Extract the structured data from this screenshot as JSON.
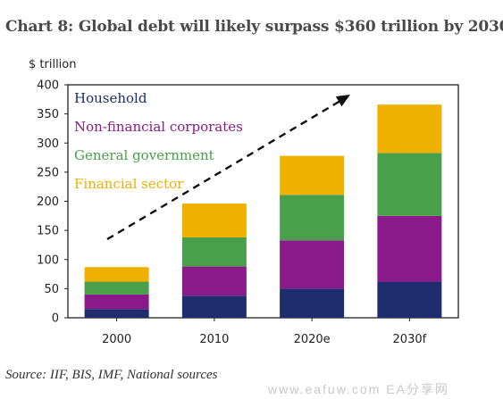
{
  "title": "Chart 8:  Global debt will likely surpass $360 trillion by 2030",
  "source": "Source: IIF, BIS, IMF, National sources",
  "watermark": "www.eafuw.com  EA分享网",
  "chart_data": {
    "type": "bar",
    "stacked": true,
    "ylabel": "$ trillion",
    "ylim": [
      0,
      400
    ],
    "yticks": [
      0,
      50,
      100,
      150,
      200,
      250,
      300,
      350,
      400
    ],
    "categories": [
      "2000",
      "2010",
      "2020e",
      "2030f"
    ],
    "series": [
      {
        "name": "Household",
        "color": "#1f2d6e",
        "values": [
          15,
          38,
          50,
          62
        ]
      },
      {
        "name": "Non-financial corporates",
        "color": "#8a1a8a",
        "values": [
          25,
          50,
          83,
          113
        ]
      },
      {
        "name": "General government",
        "color": "#4aa04a",
        "values": [
          22,
          50,
          78,
          108
        ]
      },
      {
        "name": "Financial sector",
        "color": "#f0b000",
        "values": [
          25,
          58,
          67,
          83
        ]
      }
    ],
    "legend_position": "top-left",
    "grid": false,
    "trend_arrow": "dashed"
  }
}
